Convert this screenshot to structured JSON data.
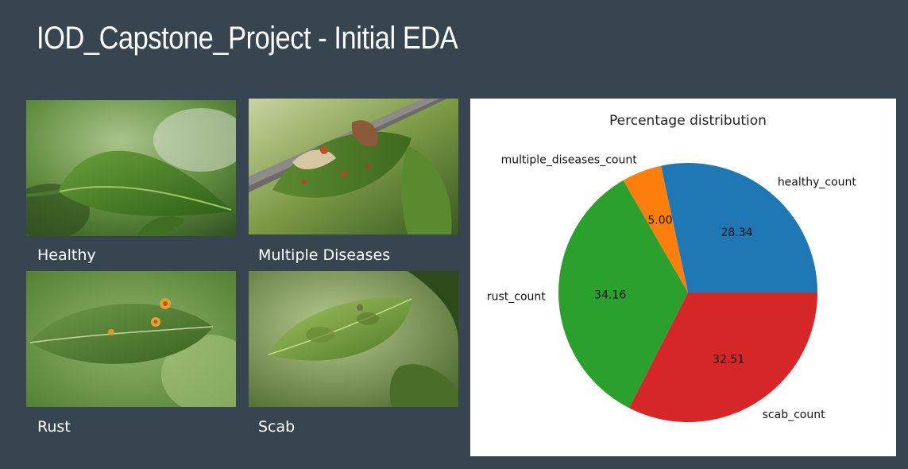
{
  "slide": {
    "title": "IOD_Capstone_Project - Initial EDA"
  },
  "gallery": [
    {
      "caption": "Healthy"
    },
    {
      "caption": "Multiple Diseases"
    },
    {
      "caption": "Rust"
    },
    {
      "caption": "Scab"
    }
  ],
  "chart_data": {
    "type": "pie",
    "title": "Percentage distribution",
    "slices": [
      {
        "label": "healthy_count",
        "value": 28.34,
        "display": "28.34",
        "color": "#1f77b4"
      },
      {
        "label": "multiple_diseases_count",
        "value": 5.0,
        "display": "5.00",
        "color": "#ff7f0e"
      },
      {
        "label": "rust_count",
        "value": 34.16,
        "display": "34.16",
        "color": "#2ca02c"
      },
      {
        "label": "scab_count",
        "value": 32.51,
        "display": "32.51",
        "color": "#d62728"
      }
    ],
    "start_angle": 0,
    "direction": "counterclockwise",
    "legend": "none"
  }
}
